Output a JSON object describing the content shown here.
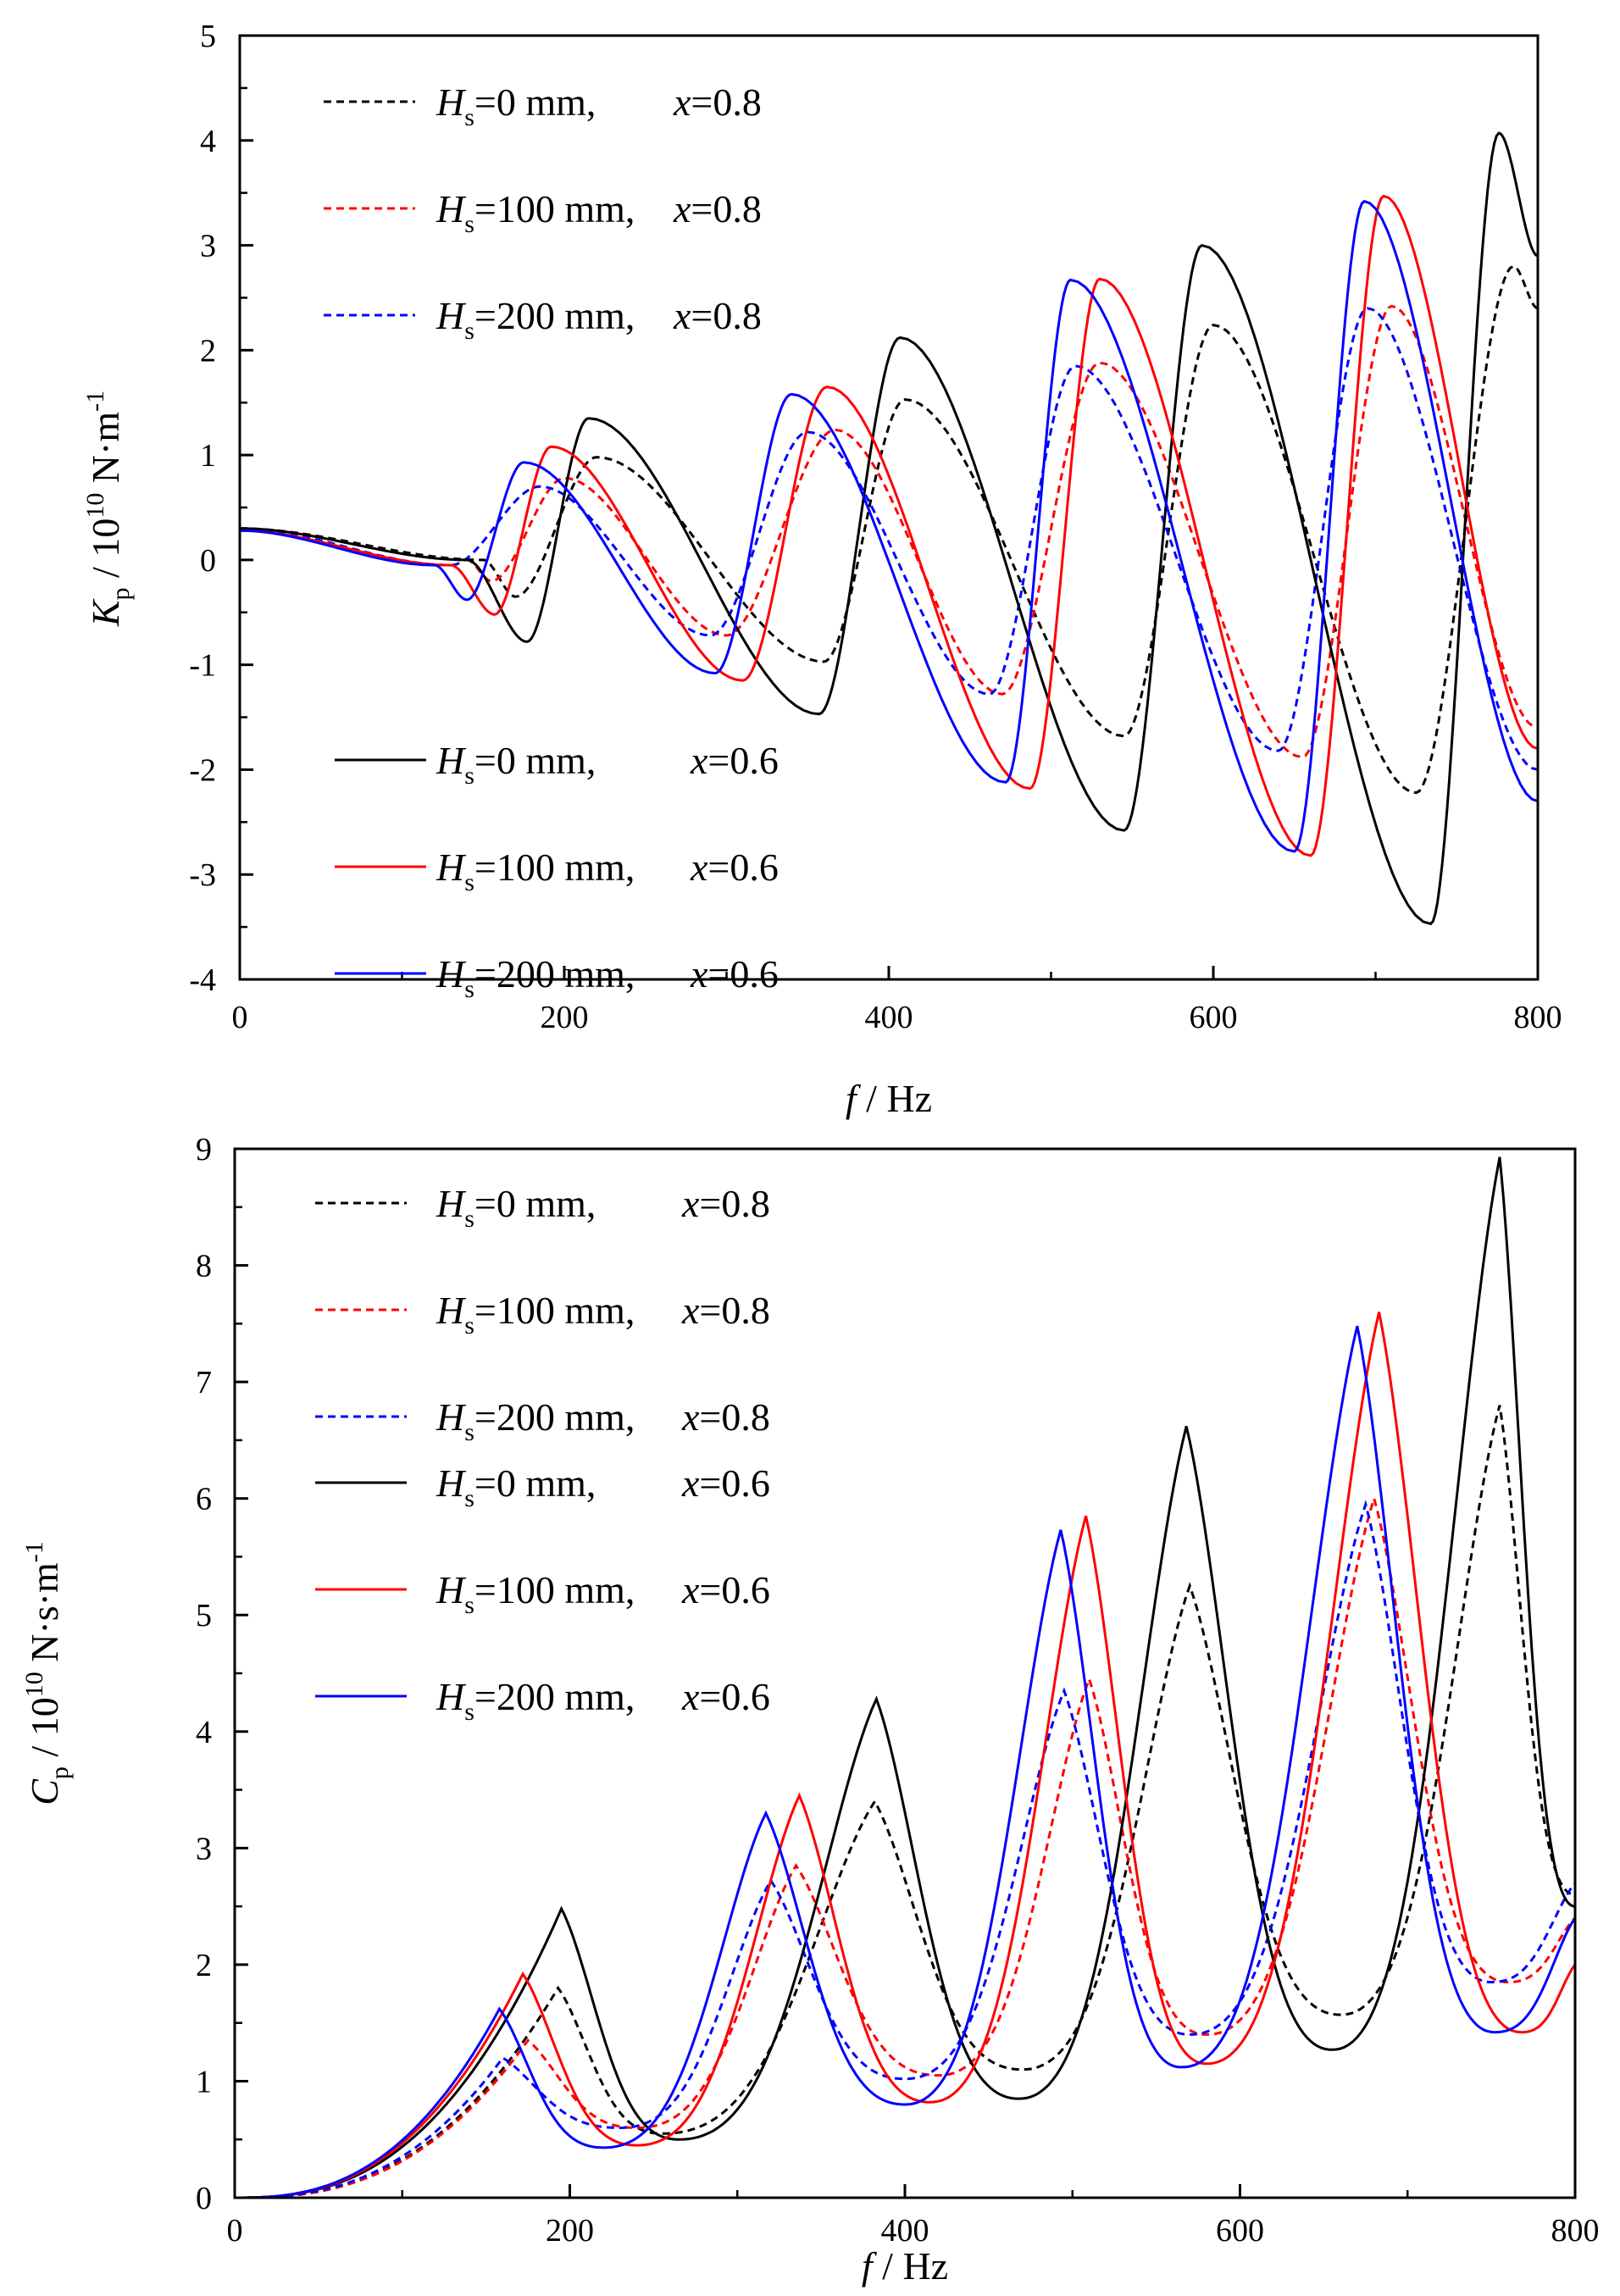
{
  "chart_data": [
    {
      "type": "line",
      "panel": "top",
      "title": "",
      "xlabel": {
        "italic": "f",
        "text": " / Hz"
      },
      "ylabel": {
        "sym": "K",
        "sub": "p",
        "pre": " / 10",
        "sup": "10",
        "unit": " N·m",
        "unitsup": "-1"
      },
      "xlim": [
        0,
        800
      ],
      "ylim": [
        -4,
        5
      ],
      "xticks": [
        "0",
        "200",
        "400",
        "600",
        "800"
      ],
      "yticks": [
        "-4",
        "-3",
        "-2",
        "-1",
        "0",
        "1",
        "2",
        "3",
        "4",
        "5"
      ],
      "legend_placement": [
        "top-left",
        "bottom-left"
      ],
      "series": [
        {
          "name": "Hs=0 mm, x=0.8",
          "color": "#000000",
          "dash": true,
          "legend": {
            "sym": "H",
            "sub": "s",
            "eq": "=0 mm,",
            "xsym": "x",
            "xval": "=0.8"
          },
          "extrema": [
            [
              0,
              0.3
            ],
            [
              150,
              0
            ],
            [
              170,
              -0.35
            ],
            [
              220,
              0.98
            ],
            [
              360,
              -0.97
            ],
            [
              410,
              1.53
            ],
            [
              545,
              -1.68
            ],
            [
              600,
              2.24
            ],
            [
              725,
              -2.22
            ],
            [
              785,
              2.8
            ],
            [
              800,
              2.4
            ]
          ]
        },
        {
          "name": "Hs=100 mm, x=0.8",
          "color": "#ff0000",
          "dash": true,
          "legend": {
            "sym": "H",
            "sub": "s",
            "eq": "=100 mm,",
            "xsym": "x",
            "xval": "=0.8"
          },
          "extrema": [
            [
              0,
              0.3
            ],
            [
              140,
              0
            ],
            [
              155,
              -0.2
            ],
            [
              200,
              0.78
            ],
            [
              300,
              -0.72
            ],
            [
              367,
              1.24
            ],
            [
              470,
              -1.28
            ],
            [
              530,
              1.88
            ],
            [
              655,
              -1.88
            ],
            [
              710,
              2.42
            ],
            [
              800,
              -1.6
            ]
          ]
        },
        {
          "name": "Hs=200 mm, x=0.8",
          "color": "#0000ff",
          "dash": true,
          "legend": {
            "sym": "H",
            "sub": "s",
            "eq": "=200 mm,",
            "xsym": "x",
            "xval": "=0.8"
          },
          "extrema": [
            [
              0,
              0.3
            ],
            [
              130,
              -0.05
            ],
            [
              185,
              0.7
            ],
            [
              290,
              -0.72
            ],
            [
              350,
              1.22
            ],
            [
              462,
              -1.28
            ],
            [
              515,
              1.85
            ],
            [
              640,
              -1.82
            ],
            [
              695,
              2.4
            ],
            [
              800,
              -2.0
            ]
          ]
        },
        {
          "name": "Hs=0 mm, x=0.6",
          "color": "#000000",
          "dash": false,
          "legend": {
            "sym": "H",
            "sub": "s",
            "eq": "=0 mm,",
            "xsym": "x",
            "xval": "=0.6"
          },
          "extrema": [
            [
              0,
              0.3
            ],
            [
              140,
              0
            ],
            [
              177,
              -0.78
            ],
            [
              215,
              1.35
            ],
            [
              357,
              -1.47
            ],
            [
              407,
              2.12
            ],
            [
              545,
              -2.58
            ],
            [
              593,
              3.0
            ],
            [
              734,
              -3.47
            ],
            [
              776,
              4.07
            ],
            [
              800,
              2.9
            ]
          ]
        },
        {
          "name": "Hs=100 mm, x=0.6",
          "color": "#ff0000",
          "dash": false,
          "legend": {
            "sym": "H",
            "sub": "s",
            "eq": "=100 mm,",
            "xsym": "x",
            "xval": "=0.6"
          },
          "extrema": [
            [
              0,
              0.28
            ],
            [
              130,
              -0.05
            ],
            [
              157,
              -0.52
            ],
            [
              192,
              1.08
            ],
            [
              310,
              -1.15
            ],
            [
              362,
              1.65
            ],
            [
              487,
              -2.18
            ],
            [
              530,
              2.68
            ],
            [
              660,
              -2.82
            ],
            [
              705,
              3.47
            ],
            [
              800,
              -1.8
            ]
          ]
        },
        {
          "name": "Hs=200 mm, x=0.6",
          "color": "#0000ff",
          "dash": false,
          "legend": {
            "sym": "H",
            "sub": "s",
            "eq": "=200 mm,",
            "xsym": "x",
            "xval": "=0.6"
          },
          "extrema": [
            [
              0,
              0.28
            ],
            [
              120,
              -0.05
            ],
            [
              140,
              -0.38
            ],
            [
              175,
              0.93
            ],
            [
              293,
              -1.08
            ],
            [
              340,
              1.58
            ],
            [
              472,
              -2.12
            ],
            [
              512,
              2.67
            ],
            [
              650,
              -2.78
            ],
            [
              693,
              3.42
            ],
            [
              800,
              -2.3
            ]
          ]
        }
      ]
    },
    {
      "type": "line",
      "panel": "bottom",
      "title": "",
      "xlabel": {
        "italic": "f",
        "text": " / Hz"
      },
      "ylabel": {
        "sym": "C",
        "sub": "p",
        "pre": " / 10",
        "sup": "10",
        "unit": " N·s·m",
        "unitsup": "-1"
      },
      "xlim": [
        0,
        800
      ],
      "ylim": [
        0,
        9
      ],
      "xticks": [
        "0",
        "200",
        "400",
        "600",
        "800"
      ],
      "yticks": [
        "0",
        "1",
        "2",
        "3",
        "4",
        "5",
        "6",
        "7",
        "8",
        "9"
      ],
      "legend_placement": "top-left",
      "series": [
        {
          "name": "Hs=0 mm, x=0.8",
          "color": "#000000",
          "dash": true,
          "legend": {
            "sym": "H",
            "sub": "s",
            "eq": "=0 mm,",
            "xsym": "x",
            "xval": "=0.8"
          },
          "peaks": [
            [
              0,
              0
            ],
            [
              193,
              1.8
            ],
            [
              255,
              0.55
            ],
            [
              382,
              3.4
            ],
            [
              470,
              1.1
            ],
            [
              570,
              5.25
            ],
            [
              660,
              1.57
            ],
            [
              755,
              6.8
            ],
            [
              800,
              2.6
            ]
          ]
        },
        {
          "name": "Hs=100 mm, x=0.8",
          "color": "#ff0000",
          "dash": true,
          "legend": {
            "sym": "H",
            "sub": "s",
            "eq": "=100 mm,",
            "xsym": "x",
            "xval": "=0.8"
          },
          "peaks": [
            [
              0,
              0
            ],
            [
              175,
              1.35
            ],
            [
              240,
              0.6
            ],
            [
              335,
              2.85
            ],
            [
              420,
              1.05
            ],
            [
              510,
              4.45
            ],
            [
              580,
              1.4
            ],
            [
              680,
              6.0
            ],
            [
              760,
              1.85
            ],
            [
              800,
              2.4
            ]
          ]
        },
        {
          "name": "Hs=200 mm, x=0.8",
          "color": "#0000ff",
          "dash": true,
          "legend": {
            "sym": "H",
            "sub": "s",
            "eq": "=200 mm,",
            "xsym": "x",
            "xval": "=0.8"
          },
          "peaks": [
            [
              0,
              0
            ],
            [
              160,
              1.2
            ],
            [
              230,
              0.6
            ],
            [
              320,
              2.72
            ],
            [
              400,
              1.02
            ],
            [
              495,
              4.35
            ],
            [
              570,
              1.4
            ],
            [
              675,
              5.95
            ],
            [
              750,
              1.85
            ],
            [
              800,
              2.7
            ]
          ]
        },
        {
          "name": "Hs=0 mm, x=0.6",
          "color": "#000000",
          "dash": false,
          "legend": {
            "sym": "H",
            "sub": "s",
            "eq": "=0 mm,",
            "xsym": "x",
            "xval": "=0.6"
          },
          "peaks": [
            [
              0,
              0
            ],
            [
              195,
              2.48
            ],
            [
              265,
              0.5
            ],
            [
              383,
              4.28
            ],
            [
              468,
              0.85
            ],
            [
              568,
              6.62
            ],
            [
              655,
              1.27
            ],
            [
              755,
              8.93
            ],
            [
              800,
              2.5
            ]
          ]
        },
        {
          "name": "Hs=100 mm, x=0.6",
          "color": "#ff0000",
          "dash": false,
          "legend": {
            "sym": "H",
            "sub": "s",
            "eq": "=100 mm,",
            "xsym": "x",
            "xval": "=0.6"
          },
          "peaks": [
            [
              0,
              0
            ],
            [
              172,
              1.92
            ],
            [
              240,
              0.45
            ],
            [
              337,
              3.45
            ],
            [
              415,
              0.82
            ],
            [
              508,
              5.85
            ],
            [
              580,
              1.15
            ],
            [
              683,
              7.6
            ],
            [
              768,
              1.42
            ],
            [
              800,
              2.0
            ]
          ]
        },
        {
          "name": "Hs=200 mm, x=0.6",
          "color": "#0000ff",
          "dash": false,
          "legend": {
            "sym": "H",
            "sub": "s",
            "eq": "=200 mm,",
            "xsym": "x",
            "xval": "=0.6"
          },
          "peaks": [
            [
              0,
              0
            ],
            [
              158,
              1.62
            ],
            [
              220,
              0.43
            ],
            [
              317,
              3.3
            ],
            [
              400,
              0.8
            ],
            [
              493,
              5.73
            ],
            [
              565,
              1.12
            ],
            [
              670,
              7.48
            ],
            [
              752,
              1.42
            ],
            [
              800,
              2.4
            ]
          ]
        }
      ]
    }
  ]
}
